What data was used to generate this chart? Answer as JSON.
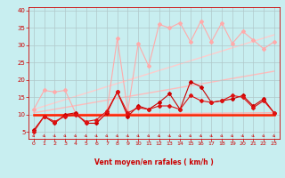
{
  "background_color": "#c8eef0",
  "grid_color": "#b0c8ca",
  "xlabel": "Vent moyen/en rafales ( km/h )",
  "x_ticks": [
    0,
    1,
    2,
    3,
    4,
    5,
    6,
    7,
    8,
    9,
    10,
    11,
    12,
    13,
    14,
    15,
    16,
    17,
    18,
    19,
    20,
    21,
    22,
    23
  ],
  "ylim": [
    3,
    41
  ],
  "xlim": [
    -0.5,
    23.5
  ],
  "yticks": [
    5,
    10,
    15,
    20,
    25,
    30,
    35,
    40
  ],
  "trend_lines": [
    {
      "x": [
        0,
        23
      ],
      "y": [
        10.0,
        10.5
      ],
      "color": "#ffaaaa",
      "lw": 1.0
    },
    {
      "x": [
        0,
        23
      ],
      "y": [
        10.5,
        22.5
      ],
      "color": "#ffbbbb",
      "lw": 1.0
    },
    {
      "x": [
        0,
        23
      ],
      "y": [
        11.5,
        33.0
      ],
      "color": "#ffcccc",
      "lw": 1.0
    }
  ],
  "flat_line": {
    "x": [
      0,
      23
    ],
    "y": [
      10.0,
      10.0
    ],
    "color": "#ff2200",
    "lw": 1.8
  },
  "light_zigzag": {
    "x": [
      0,
      1,
      2,
      3,
      4,
      5,
      6,
      7,
      8,
      9,
      10,
      11,
      12,
      13,
      14,
      15,
      16,
      17,
      18,
      19,
      20,
      21,
      22,
      23
    ],
    "y": [
      11.5,
      17.0,
      16.5,
      17.0,
      10.5,
      7.5,
      7.5,
      11.0,
      32.0,
      11.0,
      30.5,
      24.0,
      36.0,
      35.0,
      36.5,
      31.0,
      37.0,
      31.0,
      36.5,
      30.5,
      34.0,
      31.5,
      29.0,
      31.0
    ],
    "color": "#ffaaaa",
    "lw": 0.8,
    "marker": "D",
    "markersize": 2.0
  },
  "dark_zigzag1": {
    "x": [
      0,
      1,
      2,
      3,
      4,
      5,
      6,
      7,
      8,
      9,
      10,
      11,
      12,
      13,
      14,
      15,
      16,
      17,
      18,
      19,
      20,
      21,
      22,
      23
    ],
    "y": [
      5.5,
      9.5,
      7.5,
      10.0,
      10.5,
      7.5,
      7.5,
      10.5,
      16.5,
      9.5,
      12.5,
      11.5,
      13.5,
      16.0,
      11.5,
      19.5,
      18.0,
      13.5,
      14.0,
      14.5,
      15.5,
      12.5,
      14.5,
      10.5
    ],
    "color": "#cc0000",
    "lw": 0.8,
    "marker": "D",
    "markersize": 2.0
  },
  "dark_zigzag2": {
    "x": [
      0,
      1,
      2,
      3,
      4,
      5,
      6,
      7,
      8,
      9,
      10,
      11,
      12,
      13,
      14,
      15,
      16,
      17,
      18,
      19,
      20,
      21,
      22,
      23
    ],
    "y": [
      5.0,
      9.5,
      8.0,
      9.5,
      10.0,
      8.0,
      8.5,
      11.0,
      16.5,
      10.5,
      12.0,
      11.5,
      12.5,
      12.5,
      11.5,
      15.5,
      14.0,
      13.5,
      14.0,
      15.5,
      15.0,
      12.0,
      14.0,
      10.5
    ],
    "color": "#dd1111",
    "lw": 0.8,
    "marker": "D",
    "markersize": 2.0
  },
  "arrow_color": "#cc2222",
  "figsize": [
    3.2,
    2.0
  ],
  "dpi": 100
}
